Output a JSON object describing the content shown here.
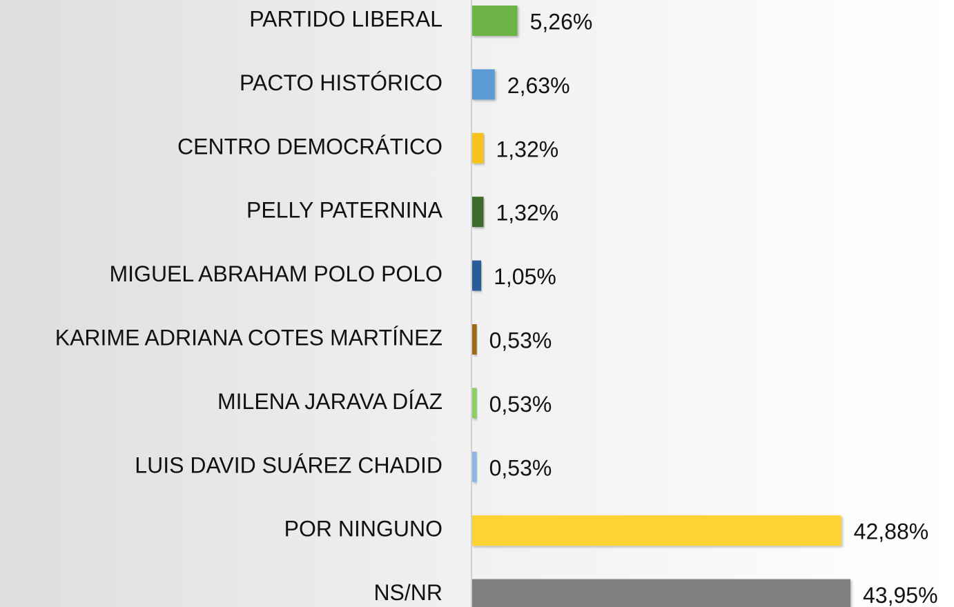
{
  "chart_data": {
    "type": "bar",
    "orientation": "horizontal",
    "categories": [
      "PARTIDO LIBERAL",
      "PACTO HISTÓRICO",
      "CENTRO DEMOCRÁTICO",
      "PELLY PATERNINA",
      "MIGUEL ABRAHAM POLO POLO",
      "KARIME ADRIANA COTES MARTÍNEZ",
      "MILENA JARAVA DÍAZ",
      "LUIS DAVID SUÁREZ CHADID",
      "POR NINGUNO",
      "NS/NR"
    ],
    "values": [
      5.26,
      2.63,
      1.32,
      1.32,
      1.05,
      0.53,
      0.53,
      0.53,
      42.88,
      43.95
    ],
    "value_labels": [
      "5,26%",
      "2,63%",
      "1,32%",
      "1,32%",
      "1,05%",
      "0,53%",
      "0,53%",
      "0,53%",
      "42,88%",
      "43,95%"
    ],
    "colors": [
      "#6cb445",
      "#5b9bd5",
      "#f7c21a",
      "#3f6b2a",
      "#2c5c97",
      "#9c6a12",
      "#8ccf63",
      "#8db6e6",
      "#fdd232",
      "#808080"
    ]
  }
}
